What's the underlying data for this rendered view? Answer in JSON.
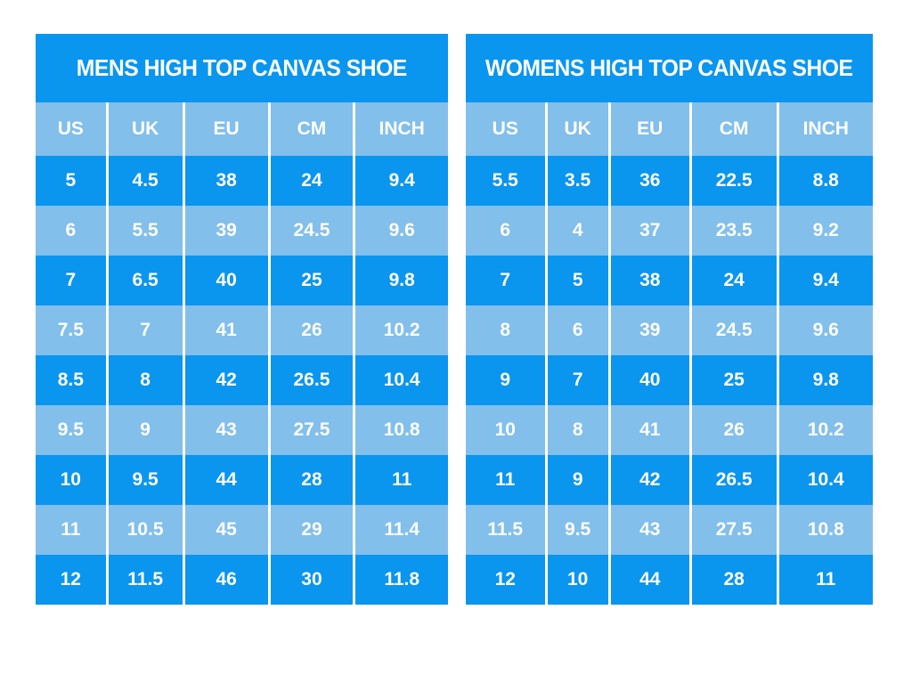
{
  "colors": {
    "page_background": "#ffffff",
    "primary_blue": "#0a95ef",
    "light_blue": "#82bfeb",
    "text_white": "#ffffff"
  },
  "chart_data": [
    {
      "type": "table",
      "title": "MENS HIGH TOP CANVAS SHOE",
      "columns": [
        "US",
        "UK",
        "EU",
        "CM",
        "INCH"
      ],
      "rows": [
        [
          "5",
          "4.5",
          "38",
          "24",
          "9.4"
        ],
        [
          "6",
          "5.5",
          "39",
          "24.5",
          "9.6"
        ],
        [
          "7",
          "6.5",
          "40",
          "25",
          "9.8"
        ],
        [
          "7.5",
          "7",
          "41",
          "26",
          "10.2"
        ],
        [
          "8.5",
          "8",
          "42",
          "26.5",
          "10.4"
        ],
        [
          "9.5",
          "9",
          "43",
          "27.5",
          "10.8"
        ],
        [
          "10",
          "9.5",
          "44",
          "28",
          "11"
        ],
        [
          "11",
          "10.5",
          "45",
          "29",
          "11.4"
        ],
        [
          "12",
          "11.5",
          "46",
          "30",
          "11.8"
        ]
      ]
    },
    {
      "type": "table",
      "title": "WOMENS HIGH TOP CANVAS SHOE",
      "columns": [
        "US",
        "UK",
        "EU",
        "CM",
        "INCH"
      ],
      "rows": [
        [
          "5.5",
          "3.5",
          "36",
          "22.5",
          "8.8"
        ],
        [
          "6",
          "4",
          "37",
          "23.5",
          "9.2"
        ],
        [
          "7",
          "5",
          "38",
          "24",
          "9.4"
        ],
        [
          "8",
          "6",
          "39",
          "24.5",
          "9.6"
        ],
        [
          "9",
          "7",
          "40",
          "25",
          "9.8"
        ],
        [
          "10",
          "8",
          "41",
          "26",
          "10.2"
        ],
        [
          "11",
          "9",
          "42",
          "26.5",
          "10.4"
        ],
        [
          "11.5",
          "9.5",
          "43",
          "27.5",
          "10.8"
        ],
        [
          "12",
          "10",
          "44",
          "28",
          "11"
        ]
      ]
    }
  ]
}
